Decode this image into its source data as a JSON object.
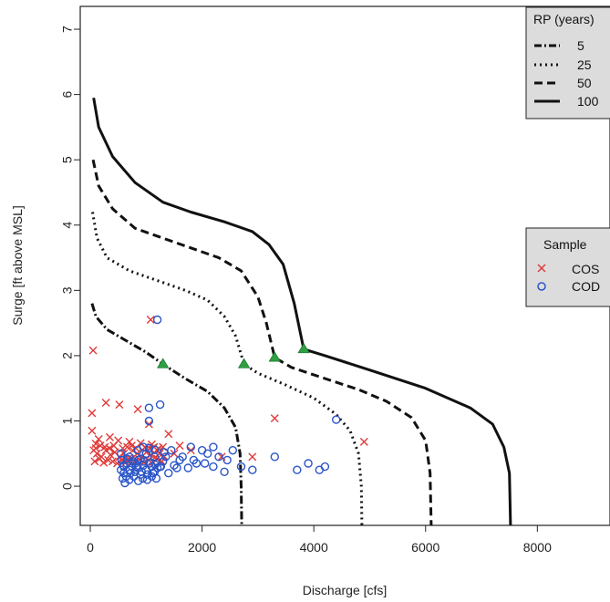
{
  "chart_data": {
    "type": "scatter",
    "xlabel": "Discharge [cfs]",
    "ylabel": "Surge [ft above MSL]",
    "xlim": [
      -180,
      9300
    ],
    "ylim": [
      -0.6,
      7.35
    ],
    "xticks": [
      0,
      2000,
      4000,
      6000,
      8000
    ],
    "yticks": [
      0,
      1,
      2,
      3,
      4,
      5,
      6,
      7
    ],
    "grid": false,
    "legends": [
      {
        "title": "RP (years)",
        "placement": "top-right",
        "entries": [
          {
            "label": "5",
            "style": "dashdot"
          },
          {
            "label": "25",
            "style": "dotted"
          },
          {
            "label": "50",
            "style": "dashed"
          },
          {
            "label": "100",
            "style": "solid"
          }
        ]
      },
      {
        "title": "Sample",
        "placement": "right",
        "entries": [
          {
            "label": "COS",
            "marker": "x",
            "color": "#e03a3a"
          },
          {
            "label": "COD",
            "marker": "o",
            "color": "#2a55c8"
          }
        ]
      }
    ],
    "curves": [
      {
        "rp": "5",
        "style": "dashdot",
        "points": [
          [
            30,
            2.8
          ],
          [
            100,
            2.6
          ],
          [
            300,
            2.4
          ],
          [
            600,
            2.25
          ],
          [
            1000,
            2.05
          ],
          [
            1300,
            1.87
          ],
          [
            1700,
            1.65
          ],
          [
            2100,
            1.45
          ],
          [
            2400,
            1.2
          ],
          [
            2600,
            0.9
          ],
          [
            2680,
            0.5
          ],
          [
            2700,
            0.0
          ],
          [
            2710,
            -0.6
          ]
        ]
      },
      {
        "rp": "25",
        "style": "dotted",
        "points": [
          [
            40,
            4.2
          ],
          [
            120,
            3.8
          ],
          [
            300,
            3.5
          ],
          [
            700,
            3.3
          ],
          [
            1200,
            3.15
          ],
          [
            1700,
            3.0
          ],
          [
            2100,
            2.85
          ],
          [
            2400,
            2.6
          ],
          [
            2600,
            2.3
          ],
          [
            2750,
            1.87
          ],
          [
            3000,
            1.73
          ],
          [
            3500,
            1.55
          ],
          [
            4000,
            1.35
          ],
          [
            4400,
            1.1
          ],
          [
            4650,
            0.85
          ],
          [
            4800,
            0.5
          ],
          [
            4850,
            0.0
          ],
          [
            4860,
            -0.6
          ]
        ]
      },
      {
        "rp": "50",
        "style": "dashed",
        "points": [
          [
            50,
            5.0
          ],
          [
            150,
            4.6
          ],
          [
            400,
            4.25
          ],
          [
            800,
            3.95
          ],
          [
            1300,
            3.8
          ],
          [
            1800,
            3.65
          ],
          [
            2300,
            3.5
          ],
          [
            2700,
            3.3
          ],
          [
            3000,
            2.9
          ],
          [
            3150,
            2.5
          ],
          [
            3300,
            1.97
          ],
          [
            3600,
            1.82
          ],
          [
            4200,
            1.65
          ],
          [
            4800,
            1.48
          ],
          [
            5300,
            1.3
          ],
          [
            5750,
            1.05
          ],
          [
            6000,
            0.7
          ],
          [
            6080,
            0.2
          ],
          [
            6100,
            -0.6
          ]
        ]
      },
      {
        "rp": "100",
        "style": "solid",
        "points": [
          [
            60,
            5.95
          ],
          [
            150,
            5.5
          ],
          [
            400,
            5.05
          ],
          [
            800,
            4.65
          ],
          [
            1300,
            4.35
          ],
          [
            1800,
            4.2
          ],
          [
            2400,
            4.05
          ],
          [
            2900,
            3.9
          ],
          [
            3200,
            3.7
          ],
          [
            3450,
            3.4
          ],
          [
            3650,
            2.8
          ],
          [
            3820,
            2.1
          ],
          [
            4200,
            2.0
          ],
          [
            5000,
            1.78
          ],
          [
            6000,
            1.5
          ],
          [
            6800,
            1.2
          ],
          [
            7200,
            0.95
          ],
          [
            7400,
            0.6
          ],
          [
            7500,
            0.2
          ],
          [
            7520,
            -0.6
          ]
        ]
      }
    ],
    "green_triangles": [
      [
        1300,
        1.87
      ],
      [
        2750,
        1.87
      ],
      [
        3300,
        1.97
      ],
      [
        3820,
        2.1
      ]
    ],
    "series": [
      {
        "name": "COS",
        "marker": "x",
        "color": "#e03a3a",
        "points": [
          [
            50,
            2.08
          ],
          [
            1080,
            2.55
          ],
          [
            30,
            1.12
          ],
          [
            280,
            1.28
          ],
          [
            520,
            1.25
          ],
          [
            850,
            1.18
          ],
          [
            1050,
            0.95
          ],
          [
            1400,
            0.8
          ],
          [
            3300,
            1.04
          ],
          [
            4900,
            0.68
          ],
          [
            2900,
            0.45
          ],
          [
            2350,
            0.45
          ],
          [
            1800,
            0.55
          ],
          [
            1600,
            0.62
          ],
          [
            1300,
            0.6
          ],
          [
            30,
            0.85
          ],
          [
            100,
            0.65
          ],
          [
            150,
            0.72
          ],
          [
            350,
            0.75
          ],
          [
            500,
            0.7
          ],
          [
            700,
            0.68
          ],
          [
            900,
            0.66
          ],
          [
            1100,
            0.64
          ],
          [
            1200,
            0.55
          ],
          [
            1500,
            0.5
          ],
          [
            60,
            0.55
          ],
          [
            120,
            0.5
          ],
          [
            200,
            0.45
          ],
          [
            280,
            0.55
          ],
          [
            360,
            0.48
          ],
          [
            440,
            0.52
          ],
          [
            520,
            0.45
          ],
          [
            600,
            0.5
          ],
          [
            680,
            0.42
          ],
          [
            760,
            0.55
          ],
          [
            840,
            0.5
          ],
          [
            920,
            0.45
          ],
          [
            1000,
            0.52
          ],
          [
            1080,
            0.48
          ],
          [
            1160,
            0.44
          ],
          [
            1240,
            0.5
          ],
          [
            1320,
            0.46
          ],
          [
            80,
            0.38
          ],
          [
            160,
            0.42
          ],
          [
            240,
            0.36
          ],
          [
            320,
            0.4
          ],
          [
            400,
            0.38
          ],
          [
            480,
            0.35
          ],
          [
            560,
            0.4
          ],
          [
            640,
            0.37
          ],
          [
            720,
            0.42
          ],
          [
            800,
            0.38
          ],
          [
            880,
            0.41
          ],
          [
            960,
            0.36
          ],
          [
            1040,
            0.4
          ],
          [
            1120,
            0.37
          ],
          [
            1200,
            0.42
          ],
          [
            1280,
            0.38
          ],
          [
            100,
            0.58
          ],
          [
            180,
            0.62
          ],
          [
            260,
            0.6
          ],
          [
            340,
            0.58
          ],
          [
            420,
            0.62
          ],
          [
            580,
            0.58
          ],
          [
            660,
            0.6
          ],
          [
            740,
            0.62
          ],
          [
            820,
            0.58
          ],
          [
            980,
            0.6
          ],
          [
            1060,
            0.58
          ],
          [
            1140,
            0.6
          ],
          [
            1220,
            0.58
          ]
        ]
      },
      {
        "name": "COD",
        "marker": "o",
        "color": "#2a55c8",
        "points": [
          [
            1200,
            2.55
          ],
          [
            1050,
            1.2
          ],
          [
            1250,
            1.25
          ],
          [
            4400,
            1.02
          ],
          [
            1050,
            1.0
          ],
          [
            1800,
            0.6
          ],
          [
            2000,
            0.55
          ],
          [
            2100,
            0.5
          ],
          [
            2200,
            0.6
          ],
          [
            2300,
            0.45
          ],
          [
            2450,
            0.4
          ],
          [
            2700,
            0.3
          ],
          [
            2900,
            0.25
          ],
          [
            3300,
            0.45
          ],
          [
            3700,
            0.25
          ],
          [
            3900,
            0.35
          ],
          [
            4100,
            0.25
          ],
          [
            4200,
            0.3
          ],
          [
            2400,
            0.22
          ],
          [
            2200,
            0.3
          ],
          [
            1900,
            0.35
          ],
          [
            1750,
            0.28
          ],
          [
            1600,
            0.4
          ],
          [
            1500,
            0.32
          ],
          [
            1400,
            0.2
          ],
          [
            1300,
            0.38
          ],
          [
            1150,
            0.45
          ],
          [
            1000,
            0.5
          ],
          [
            900,
            0.42
          ],
          [
            800,
            0.35
          ],
          [
            700,
            0.45
          ],
          [
            600,
            0.3
          ],
          [
            550,
            0.5
          ],
          [
            1450,
            0.55
          ],
          [
            1650,
            0.45
          ],
          [
            1850,
            0.4
          ],
          [
            2050,
            0.35
          ],
          [
            2550,
            0.55
          ],
          [
            550,
            0.25
          ],
          [
            600,
            0.2
          ],
          [
            650,
            0.35
          ],
          [
            700,
            0.25
          ],
          [
            750,
            0.3
          ],
          [
            800,
            0.22
          ],
          [
            850,
            0.28
          ],
          [
            900,
            0.18
          ],
          [
            950,
            0.32
          ],
          [
            1000,
            0.25
          ],
          [
            1100,
            0.3
          ],
          [
            1150,
            0.22
          ],
          [
            1200,
            0.28
          ],
          [
            1250,
            0.3
          ],
          [
            580,
            0.12
          ],
          [
            620,
            0.05
          ],
          [
            700,
            0.1
          ],
          [
            780,
            0.15
          ],
          [
            860,
            0.08
          ],
          [
            940,
            0.12
          ],
          [
            1020,
            0.1
          ],
          [
            1100,
            0.15
          ],
          [
            1180,
            0.12
          ],
          [
            560,
            0.4
          ],
          [
            660,
            0.42
          ],
          [
            760,
            0.38
          ],
          [
            860,
            0.4
          ],
          [
            960,
            0.38
          ],
          [
            1060,
            0.35
          ],
          [
            1160,
            0.33
          ],
          [
            1260,
            0.3
          ],
          [
            1350,
            0.45
          ],
          [
            1550,
            0.28
          ],
          [
            850,
            0.55
          ],
          [
            950,
            0.6
          ],
          [
            1050,
            0.58
          ],
          [
            1150,
            0.56
          ],
          [
            1320,
            0.52
          ],
          [
            590,
            0.32
          ],
          [
            640,
            0.15
          ],
          [
            720,
            0.2
          ],
          [
            820,
            0.3
          ],
          [
            920,
            0.22
          ],
          [
            1020,
            0.18
          ],
          [
            1120,
            0.2
          ]
        ]
      }
    ]
  }
}
